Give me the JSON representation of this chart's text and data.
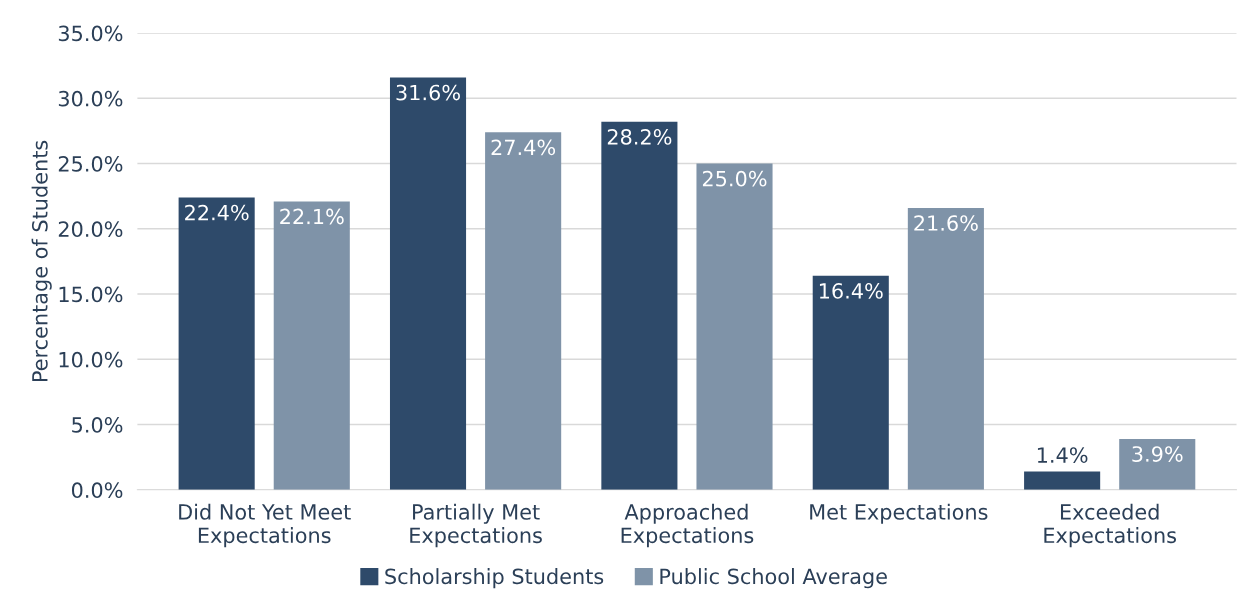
{
  "chart_data": {
    "type": "bar",
    "ylabel": "Percentage of Students",
    "categories": [
      "Did Not Yet Meet\nExpectations",
      "Partially Met\nExpectations",
      "Approached\nExpectations",
      "Met Expectations",
      "Exceeded\nExpectations"
    ],
    "series": [
      {
        "name": "Scholarship Students",
        "color": "#2e4a6a",
        "values": [
          22.4,
          31.6,
          28.2,
          16.4,
          1.4
        ],
        "value_labels": [
          "22.4%",
          "31.6%",
          "28.2%",
          "16.4%",
          "1.4%"
        ]
      },
      {
        "name": "Public School Average",
        "color": "#7f93a8",
        "values": [
          22.1,
          27.4,
          25.0,
          21.6,
          3.9
        ],
        "value_labels": [
          "22.1%",
          "27.4%",
          "25.0%",
          "21.6%",
          "3.9%"
        ]
      }
    ],
    "ylim": [
      0,
      35
    ],
    "yticks": [
      {
        "value": 0,
        "label": "0.0%"
      },
      {
        "value": 5,
        "label": "5.0%"
      },
      {
        "value": 10,
        "label": "10.0%"
      },
      {
        "value": 15,
        "label": "15.0%"
      },
      {
        "value": 20,
        "label": "20.0%"
      },
      {
        "value": 25,
        "label": "25.0%"
      },
      {
        "value": 30,
        "label": "30.0%"
      },
      {
        "value": 35,
        "label": "35.0%"
      }
    ],
    "grid": "y",
    "legend": "bottom"
  }
}
